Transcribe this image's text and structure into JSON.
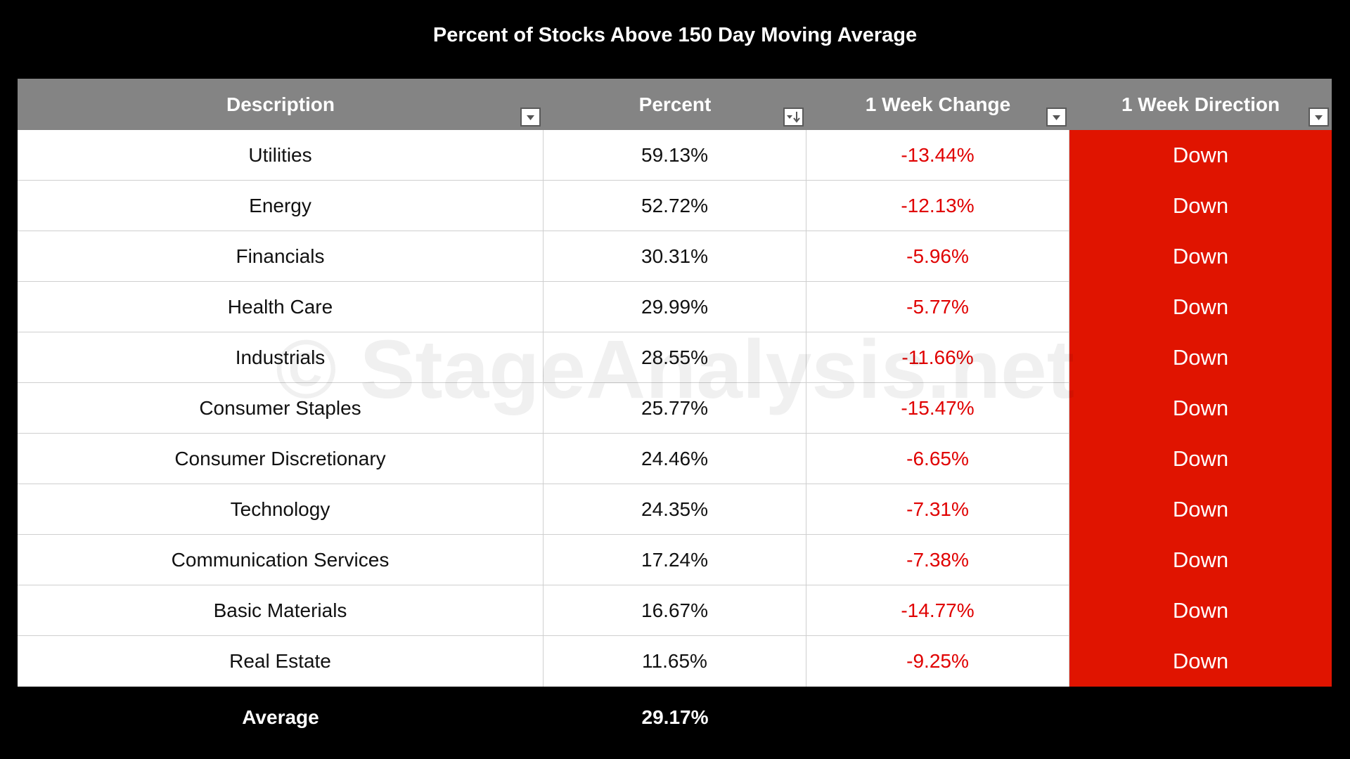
{
  "title": "Percent of Stocks Above 150 Day Moving Average",
  "watermark": "© StageAnalysis.net",
  "columns": [
    "Description",
    "Percent",
    "1 Week Change",
    "1 Week Direction"
  ],
  "footer": {
    "label": "Average",
    "value": "29.17%"
  },
  "colors": {
    "header_bg": "#848484",
    "negative_text": "#e00000",
    "down_fill": "#e01400"
  },
  "chart_data": {
    "type": "table",
    "title": "Percent of Stocks Above 150 Day Moving Average",
    "columns": [
      "Description",
      "Percent",
      "1 Week Change",
      "1 Week Direction"
    ],
    "sort": {
      "column": "Percent",
      "order": "descending"
    },
    "rows": [
      {
        "description": "Utilities",
        "percent": "59.13%",
        "change": "-13.44%",
        "direction": "Down"
      },
      {
        "description": "Energy",
        "percent": "52.72%",
        "change": "-12.13%",
        "direction": "Down"
      },
      {
        "description": "Financials",
        "percent": "30.31%",
        "change": "-5.96%",
        "direction": "Down"
      },
      {
        "description": "Health Care",
        "percent": "29.99%",
        "change": "-5.77%",
        "direction": "Down"
      },
      {
        "description": "Industrials",
        "percent": "28.55%",
        "change": "-11.66%",
        "direction": "Down"
      },
      {
        "description": "Consumer Staples",
        "percent": "25.77%",
        "change": "-15.47%",
        "direction": "Down"
      },
      {
        "description": "Consumer Discretionary",
        "percent": "24.46%",
        "change": "-6.65%",
        "direction": "Down"
      },
      {
        "description": "Technology",
        "percent": "24.35%",
        "change": "-7.31%",
        "direction": "Down"
      },
      {
        "description": "Communication Services",
        "percent": "17.24%",
        "change": "-7.38%",
        "direction": "Down"
      },
      {
        "description": "Basic Materials",
        "percent": "16.67%",
        "change": "-14.77%",
        "direction": "Down"
      },
      {
        "description": "Real Estate",
        "percent": "11.65%",
        "change": "-9.25%",
        "direction": "Down"
      }
    ],
    "average": {
      "label": "Average",
      "percent": "29.17%"
    }
  }
}
